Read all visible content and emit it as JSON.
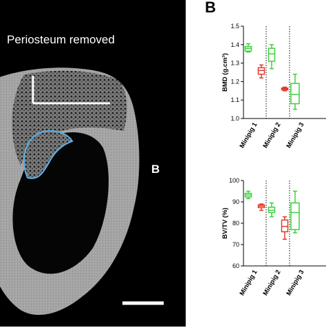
{
  "image_panel": {
    "title": "Periosteum removed",
    "letter": "B",
    "colors": {
      "background": "#000000",
      "bone": "#9a9a9a",
      "outline": "#5ab0e8",
      "scale": "#ffffff"
    }
  },
  "chart_panel": {
    "letter": "B"
  },
  "chart_data": [
    {
      "type": "boxplot",
      "ylabel": "BMD (g.cm³)",
      "ylim": [
        1.0,
        1.5
      ],
      "yticks": [
        "1.0",
        "1.1",
        "1.2",
        "1.3",
        "1.4",
        "1.5"
      ],
      "categories": [
        "Minipig 1",
        "Minipig 2",
        "Minipig 3"
      ],
      "groups": [
        {
          "category": "Minipig 1",
          "color": "#3ad13a",
          "min": 1.36,
          "q1": 1.365,
          "median": 1.38,
          "q3": 1.39,
          "max": 1.405
        },
        {
          "category": "Minipig 1",
          "color": "#e23a2a",
          "min": 1.22,
          "q1": 1.24,
          "median": 1.26,
          "q3": 1.275,
          "max": 1.29
        },
        {
          "category": "Minipig 2",
          "color": "#3ad13a",
          "min": 1.27,
          "q1": 1.31,
          "median": 1.35,
          "q3": 1.38,
          "max": 1.4
        },
        {
          "category": "Minipig 2",
          "color": "#e23a2a",
          "min": 1.15,
          "q1": 1.155,
          "median": 1.16,
          "q3": 1.165,
          "max": 1.17
        },
        {
          "category": "Minipig 3",
          "color": "#3ad13a",
          "min": 1.05,
          "q1": 1.08,
          "median": 1.13,
          "q3": 1.19,
          "max": 1.24
        }
      ]
    },
    {
      "type": "boxplot",
      "ylabel": "BV/TV (%)",
      "ylim": [
        60,
        100
      ],
      "yticks": [
        "60",
        "70",
        "80",
        "90",
        "100"
      ],
      "categories": [
        "Minipig 1",
        "Minipig 2",
        "Minipig 3"
      ],
      "groups": [
        {
          "category": "Minipig 1",
          "color": "#3ad13a",
          "min": 91.5,
          "q1": 92.3,
          "median": 93.2,
          "q3": 94.0,
          "max": 95.0
        },
        {
          "category": "Minipig 1",
          "color": "#e23a2a",
          "min": 86.0,
          "q1": 87.3,
          "median": 88.0,
          "q3": 88.6,
          "max": 89.0
        },
        {
          "category": "Minipig 2",
          "color": "#3ad13a",
          "min": 83.0,
          "q1": 85.0,
          "median": 86.0,
          "q3": 87.5,
          "max": 89.5
        },
        {
          "category": "Minipig 2",
          "color": "#e23a2a",
          "min": 72.5,
          "q1": 76.0,
          "median": 78.5,
          "q3": 81.5,
          "max": 83.0
        },
        {
          "category": "Minipig 3",
          "color": "#3ad13a",
          "min": 75.5,
          "q1": 77.0,
          "median": 85.0,
          "q3": 89.5,
          "max": 95.0
        }
      ]
    }
  ]
}
